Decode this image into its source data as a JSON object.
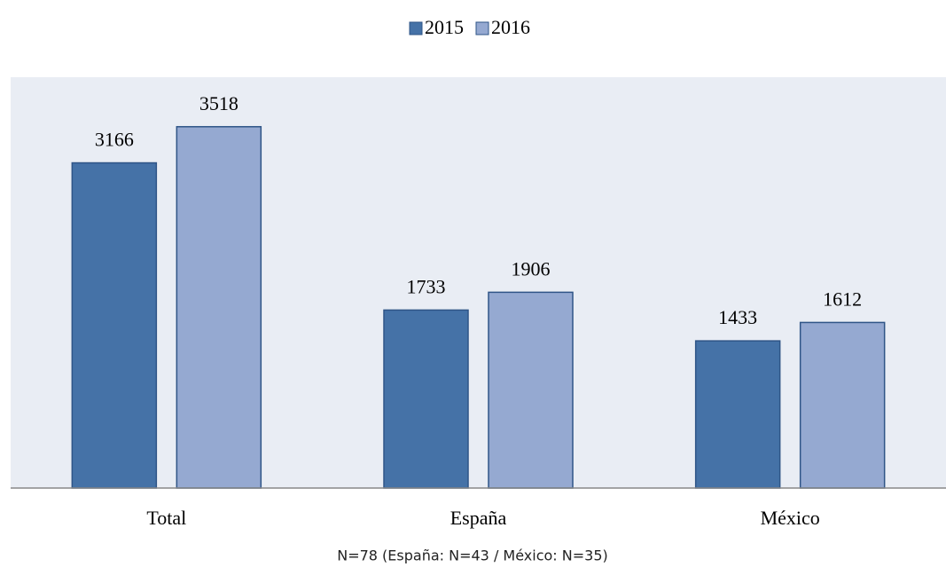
{
  "chart_data": {
    "type": "bar",
    "categories": [
      "Total",
      "España",
      "México"
    ],
    "series": [
      {
        "name": "2015",
        "color": "#4572a7",
        "values": [
          3166,
          1733,
          1433
        ]
      },
      {
        "name": "2016",
        "color": "#95a9d1",
        "values": [
          3518,
          1906,
          1612
        ]
      }
    ],
    "ylim": [
      0,
      4000
    ],
    "note": "N=78 (España: N=43 / México: N=35)"
  }
}
